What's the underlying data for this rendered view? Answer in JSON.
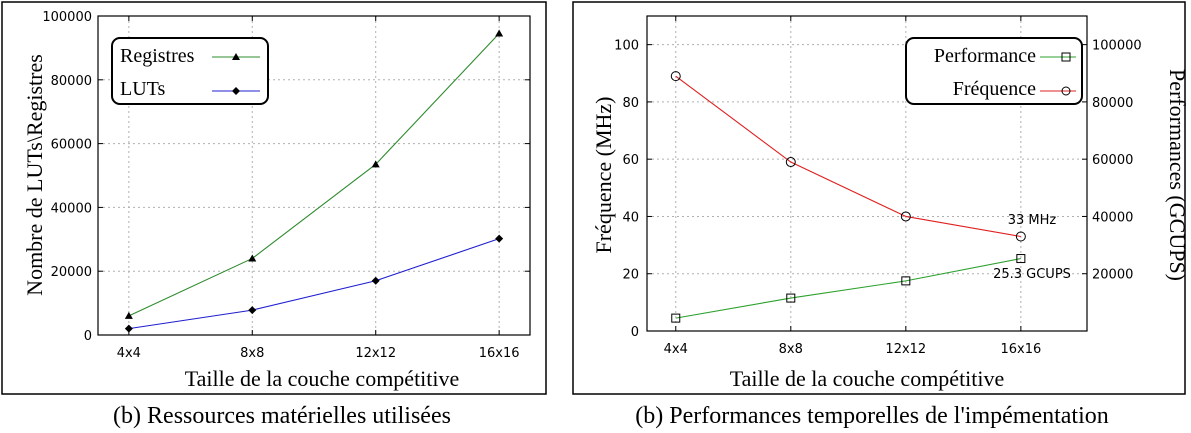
{
  "chart_data": [
    {
      "type": "line",
      "categories": [
        "4x4",
        "8x8",
        "12x12",
        "16x16"
      ],
      "x": [
        4,
        8,
        12,
        16
      ],
      "xlabel": "Taille de la couche compétitive",
      "ylabel": "Nombre de LUTs\\Registres",
      "ylim": [
        0,
        100000
      ],
      "yticks": [
        "0",
        "20000",
        "40000",
        "60000",
        "80000",
        "100000"
      ],
      "grid": true,
      "legend_position": "top-left",
      "series": [
        {
          "name": "Registres",
          "values": [
            6000,
            24000,
            53500,
            94500
          ],
          "color": "#2e8b2e",
          "marker": "triangle"
        },
        {
          "name": "LUTs",
          "values": [
            2000,
            7800,
            17000,
            30200
          ],
          "color": "#1f1fd0",
          "marker": "diamond"
        }
      ],
      "caption": "(b) Ressources matérielles utilisées"
    },
    {
      "type": "line",
      "categories": [
        "4x4",
        "8x8",
        "12x12",
        "16x16"
      ],
      "x": [
        4,
        8,
        12,
        16
      ],
      "xlabel": "Taille de la couche compétitive",
      "ylabel": "Fréquence (MHz)",
      "ylabel_right": "Performances (GCUPS)",
      "ylim": [
        0,
        110
      ],
      "ylim_right": [
        0,
        110000
      ],
      "yticks": [
        "0",
        "20",
        "40",
        "60",
        "80",
        "100"
      ],
      "yticks_right": [
        "20000",
        "40000",
        "60000",
        "80000",
        "100000"
      ],
      "grid": true,
      "legend_position": "top-right",
      "series": [
        {
          "name": "Performance",
          "axis": "right",
          "values": [
            4500,
            11500,
            17500,
            25300
          ],
          "color": "#2ca02c",
          "marker": "square"
        },
        {
          "name": "Fréquence",
          "axis": "left",
          "values": [
            89,
            59,
            40,
            33
          ],
          "color": "#e02020",
          "marker": "circle"
        }
      ],
      "annotations": [
        "33 MHz",
        "25.3 GCUPS"
      ],
      "caption": "(b) Performances temporelles de l'impémentation"
    }
  ]
}
